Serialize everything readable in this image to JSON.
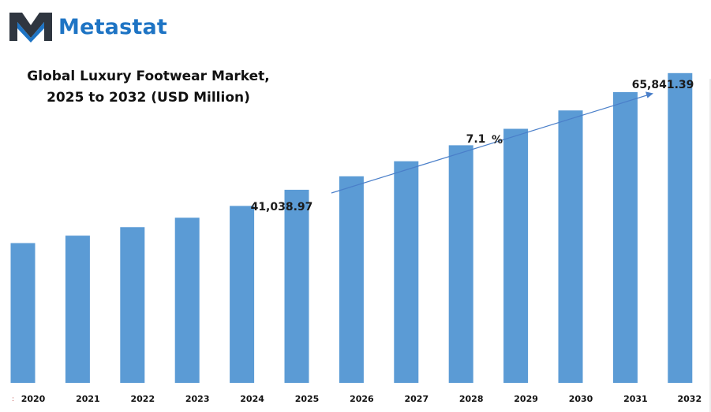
{
  "brand": {
    "name": "Metastat"
  },
  "colors": {
    "bar": "#5b9bd5",
    "brand": "#1e74c4",
    "logo_dark": "#2f3640",
    "arrow": "#4a7fc9"
  },
  "chart_data": {
    "type": "bar",
    "title": [
      "Global Luxury Footwear Market,",
      "2025 to 2032 (USD Million)"
    ],
    "xlabel": "",
    "ylabel": "",
    "categories": [
      "2020",
      "2021",
      "2022",
      "2023",
      "2024",
      "2025",
      "2026",
      "2027",
      "2028",
      "2029",
      "2030",
      "2031",
      "2032"
    ],
    "values": [
      29700,
      31300,
      33100,
      35100,
      37600,
      41038.97,
      43900,
      47100,
      50500,
      54000,
      57900,
      61800,
      65841.39
    ],
    "ylim": [
      0,
      73000
    ],
    "grid": false,
    "legend": "none",
    "annotations": {
      "start_value": "41,038.97",
      "end_value": "65,841.39",
      "cagr_value": "7.1",
      "cagr_unit": "%"
    }
  }
}
